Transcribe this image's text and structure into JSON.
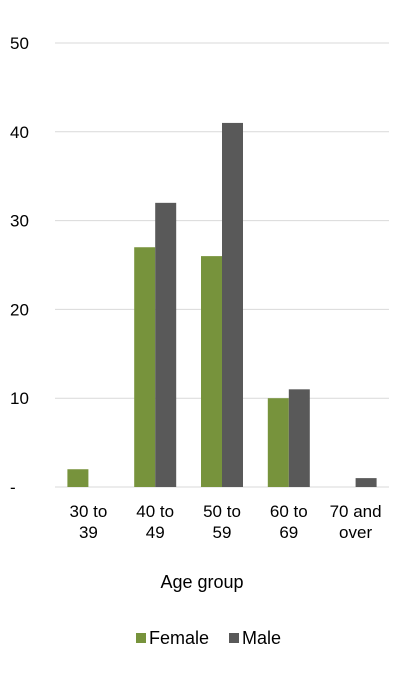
{
  "chart_data": {
    "type": "bar",
    "categories": [
      [
        "30 to",
        "39"
      ],
      [
        "40 to",
        "49"
      ],
      [
        "50 to",
        "59"
      ],
      [
        "60 to",
        "69"
      ],
      [
        "70 and",
        "over"
      ]
    ],
    "series": [
      {
        "name": "Female",
        "color": "#77933c",
        "values": [
          2,
          27,
          26,
          10,
          0
        ]
      },
      {
        "name": "Male",
        "color": "#595959",
        "values": [
          0,
          32,
          41,
          11,
          1
        ]
      }
    ],
    "ylim": [
      0,
      50
    ],
    "yticks": [
      0,
      10,
      20,
      30,
      40,
      50
    ],
    "ytick_labels": [
      "-",
      "10",
      "20",
      "30",
      "40",
      "50"
    ],
    "xlabel": "Age group",
    "ylabel": "",
    "title": "",
    "grid": true,
    "legend": "bottom"
  }
}
